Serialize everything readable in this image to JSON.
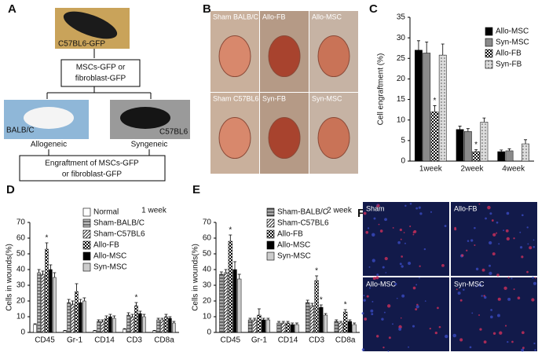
{
  "chart_data": [
    {
      "type": "bar",
      "panel": "C",
      "ylabel": "Cell engraftment (%)",
      "categories": [
        "1week",
        "2week",
        "4week"
      ],
      "ylim": [
        0,
        35
      ],
      "yticks": [
        0,
        5,
        10,
        15,
        20,
        25,
        30,
        35
      ],
      "series": [
        {
          "name": "Allo-MSC",
          "color": "#000000",
          "pattern": "solid",
          "values": [
            27,
            7.7,
            2.3
          ],
          "errors": [
            2.3,
            0.8,
            0.4
          ],
          "annotations": [
            null,
            null,
            null
          ]
        },
        {
          "name": "Syn-MSC",
          "color": "#8a8a8a",
          "pattern": "solid",
          "values": [
            26.3,
            7.2,
            2.5
          ],
          "errors": [
            2.7,
            0.7,
            0.5
          ],
          "annotations": [
            null,
            null,
            null
          ]
        },
        {
          "name": "Allo-FB",
          "color": "#ffffff",
          "pattern": "check",
          "values": [
            12,
            2.3,
            null
          ],
          "errors": [
            1.5,
            0.5,
            null
          ],
          "annotations": [
            "*",
            "*",
            null
          ]
        },
        {
          "name": "Syn-FB",
          "color": "#dddddd",
          "pattern": "dots",
          "values": [
            25.8,
            9.5,
            4.2
          ],
          "errors": [
            2.7,
            1,
            1
          ]
        }
      ]
    },
    {
      "type": "bar",
      "panel": "D",
      "ylabel": "Cells in wounds(%)",
      "note": "1 week",
      "categories": [
        "CD45",
        "Gr-1",
        "CD14",
        "CD3",
        "CD8a"
      ],
      "ylim": [
        0,
        70
      ],
      "yticks": [
        0,
        10,
        20,
        30,
        40,
        50,
        60,
        70
      ],
      "series": [
        {
          "name": "Normal",
          "color": "#ffffff",
          "pattern": "solid",
          "values": [
            5,
            1,
            1,
            2,
            1
          ],
          "errors": [
            0.5,
            0.3,
            0.3,
            0.4,
            0.3
          ]
        },
        {
          "name": "Sham-BALB/C",
          "color": "#bbbbbb",
          "pattern": "hlines",
          "values": [
            38,
            19,
            7,
            11,
            8
          ],
          "errors": [
            2,
            2,
            1,
            1.5,
            1
          ]
        },
        {
          "name": "Sham-C57BL6",
          "color": "#ffffff",
          "pattern": "diag",
          "values": [
            37,
            18,
            7,
            10,
            8
          ],
          "errors": [
            2,
            2,
            1,
            1.5,
            1
          ]
        },
        {
          "name": "Allo-FB",
          "color": "#ffffff",
          "pattern": "check",
          "values": [
            53,
            26,
            9,
            17,
            10
          ],
          "errors": [
            4,
            5,
            1.5,
            2,
            1.5
          ],
          "annotations": [
            "*",
            null,
            null,
            "*",
            null
          ]
        },
        {
          "name": "Allo-MSC",
          "color": "#000000",
          "pattern": "solid",
          "values": [
            40,
            19,
            10,
            12,
            9
          ],
          "errors": [
            3,
            2,
            1.5,
            1.5,
            1
          ]
        },
        {
          "name": "Syn-MSC",
          "color": "#cccccc",
          "pattern": "solid",
          "values": [
            35,
            20,
            9,
            10,
            6
          ],
          "errors": [
            3,
            2,
            1.5,
            1.5,
            1
          ]
        }
      ]
    },
    {
      "type": "bar",
      "panel": "E",
      "ylabel": "Cells in wounds(%)",
      "note": "2 week",
      "categories": [
        "CD45",
        "Gr-1",
        "CD14",
        "CD3",
        "CD8a"
      ],
      "ylim": [
        0,
        70
      ],
      "yticks": [
        0,
        10,
        20,
        30,
        40,
        50,
        60,
        70
      ],
      "series": [
        {
          "name": "Sham-BALB/C",
          "color": "#aaaaaa",
          "pattern": "hlines",
          "values": [
            37,
            8,
            6,
            19,
            7
          ],
          "errors": [
            1.5,
            1,
            1,
            1.5,
            1
          ]
        },
        {
          "name": "Sham-C57BL6",
          "color": "#ffffff",
          "pattern": "diag",
          "values": [
            38,
            8,
            6,
            17,
            6
          ],
          "errors": [
            2,
            1,
            1,
            1.5,
            1
          ]
        },
        {
          "name": "Allo-FB",
          "color": "#ffffff",
          "pattern": "check",
          "values": [
            58,
            11,
            6,
            33,
            13
          ],
          "errors": [
            4,
            4,
            1,
            3,
            1.5
          ],
          "annotations": [
            "*",
            null,
            null,
            "*",
            "*"
          ]
        },
        {
          "name": "Allo-MSC",
          "color": "#000000",
          "pattern": "solid",
          "values": [
            40,
            8,
            5,
            16,
            7
          ],
          "errors": [
            5,
            1,
            1,
            1.5,
            1
          ],
          "annotations": [
            null,
            null,
            null,
            "*",
            null
          ]
        },
        {
          "name": "Syn-MSC",
          "color": "#cccccc",
          "pattern": "solid",
          "values": [
            34,
            8,
            5,
            11,
            5
          ],
          "errors": [
            3,
            1,
            1,
            1,
            1
          ]
        }
      ]
    }
  ],
  "diagram": {
    "panel": "A",
    "source": "C57BL6-GFP",
    "cells_box": [
      "MSCs-GFP  or",
      "fibroblast-GFP"
    ],
    "hosts": [
      {
        "strain": "BALB/C",
        "type": "Allogeneic"
      },
      {
        "strain": "C57BL6",
        "type": "Syngeneic"
      }
    ],
    "result": [
      "Engraftment of MSCs-GFP",
      "or fibroblast-GFP"
    ]
  },
  "photos": {
    "panel": "B",
    "labels": [
      "Sham BALB/C",
      "Allo-FB",
      "Allo-MSC",
      "Sham C57BL6",
      "Syn-FB",
      "Syn-MSC"
    ]
  },
  "micrographs": {
    "panel": "F",
    "labels": [
      "Sham",
      "Allo-FB",
      "Allo-MSC",
      "Syn-MSC"
    ]
  }
}
